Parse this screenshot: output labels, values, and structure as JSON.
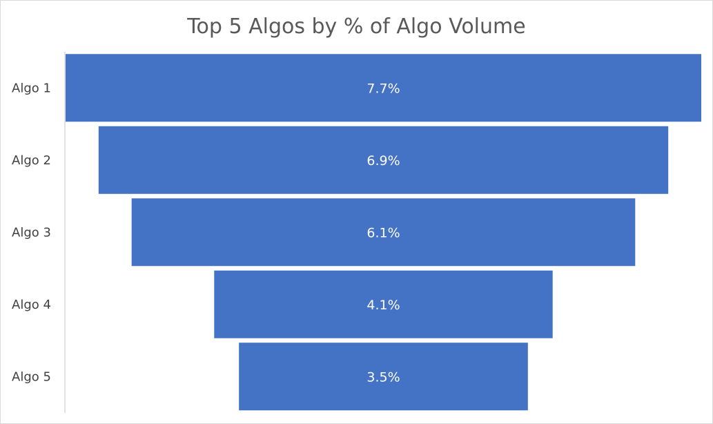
{
  "chart_data": {
    "type": "bar",
    "subtype": "funnel",
    "title": "Top 5 Algos by % of Algo Volume",
    "categories": [
      "Algo 1",
      "Algo 2",
      "Algo 3",
      "Algo 4",
      "Algo 5"
    ],
    "values": [
      7.7,
      6.9,
      6.1,
      4.1,
      3.5
    ],
    "value_labels": [
      "7.7%",
      "6.9%",
      "6.1%",
      "4.1%",
      "3.5%"
    ],
    "unit": "%",
    "legend": "none",
    "grid": false,
    "bar_color": "#4472c4",
    "label_color": "#ffffff"
  }
}
